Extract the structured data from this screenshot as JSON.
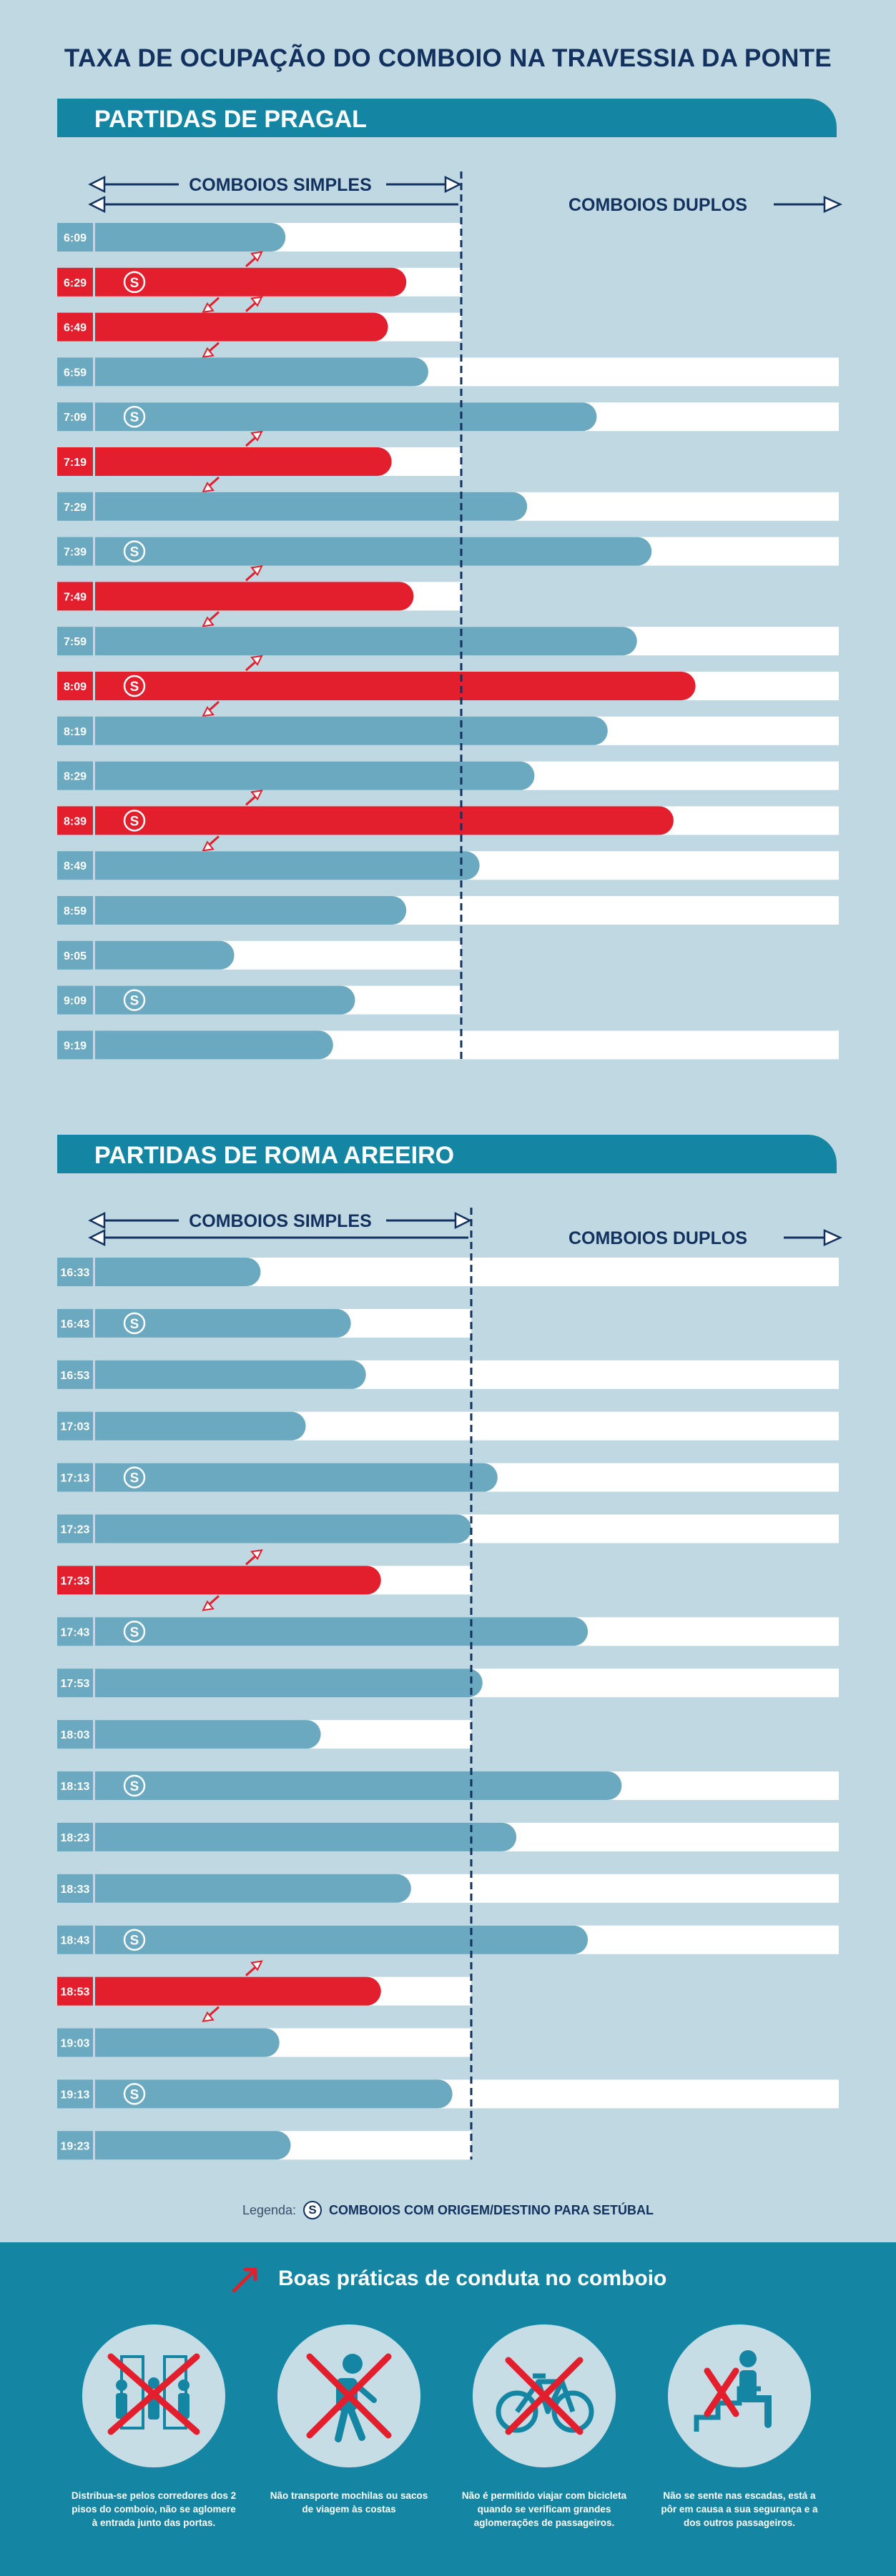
{
  "title": "TAXA DE OCUPAÇÃO DO COMBOIO NA TRAVESSIA DA PONTE",
  "labels": {
    "simple": "COMBOIOS SIMPLES",
    "double": "COMBOIOS DUPLOS"
  },
  "colors": {
    "background": "#bfd8e2",
    "banner": "#1486a3",
    "normal_bar": "#6aa9bf",
    "highlight_bar": "#e31e2d",
    "track": "#ffffff",
    "text_dark": "#12315e"
  },
  "chart_data": [
    {
      "type": "bar",
      "title": "PARTIDAS DE PRAGAL",
      "value_unit": "occupancy relative to single-train capacity",
      "capacity_single": 1.0,
      "capacity_double": 2.0,
      "categories": [
        "6:09",
        "6:29",
        "6:49",
        "6:59",
        "7:09",
        "7:19",
        "7:29",
        "7:39",
        "7:49",
        "7:59",
        "8:09",
        "8:19",
        "8:29",
        "8:39",
        "8:49",
        "8:59",
        "9:05",
        "9:09",
        "9:19"
      ],
      "values": [
        0.52,
        0.85,
        0.8,
        0.91,
        1.37,
        0.81,
        1.18,
        1.52,
        0.87,
        1.48,
        1.64,
        1.4,
        1.2,
        1.58,
        1.05,
        0.85,
        0.38,
        0.71,
        0.65
      ],
      "setubal": [
        false,
        true,
        false,
        false,
        true,
        false,
        false,
        true,
        false,
        false,
        true,
        false,
        false,
        true,
        false,
        false,
        false,
        true,
        false
      ],
      "highlight": [
        false,
        true,
        true,
        false,
        false,
        true,
        false,
        false,
        true,
        false,
        true,
        false,
        false,
        true,
        false,
        false,
        false,
        false,
        false
      ],
      "double_train": [
        false,
        false,
        false,
        true,
        true,
        false,
        true,
        true,
        false,
        true,
        true,
        true,
        true,
        true,
        true,
        true,
        false,
        false,
        true
      ]
    },
    {
      "type": "bar",
      "title": "PARTIDAS DE ROMA AREEIRO",
      "value_unit": "occupancy relative to single-train capacity",
      "capacity_single": 1.0,
      "capacity_double": 2.0,
      "categories": [
        "16:33",
        "16:43",
        "16:53",
        "17:03",
        "17:13",
        "17:23",
        "17:33",
        "17:43",
        "17:53",
        "18:03",
        "18:13",
        "18:23",
        "18:33",
        "18:43",
        "18:53",
        "19:03",
        "19:13",
        "19:23"
      ],
      "values": [
        0.44,
        0.68,
        0.72,
        0.56,
        1.07,
        1.0,
        0.76,
        1.31,
        1.03,
        0.6,
        1.4,
        1.12,
        0.84,
        1.31,
        0.76,
        0.49,
        0.95,
        0.52
      ],
      "setubal": [
        false,
        true,
        false,
        false,
        true,
        false,
        false,
        true,
        false,
        false,
        true,
        false,
        false,
        true,
        false,
        false,
        true,
        false
      ],
      "highlight": [
        false,
        false,
        false,
        false,
        false,
        false,
        true,
        false,
        false,
        false,
        false,
        false,
        false,
        false,
        true,
        false,
        false,
        false
      ],
      "double_train": [
        true,
        false,
        true,
        true,
        true,
        true,
        false,
        true,
        true,
        false,
        true,
        true,
        true,
        true,
        false,
        false,
        true,
        false
      ]
    }
  ],
  "legend": {
    "prefix": "Legenda:",
    "icon": "S",
    "text": "COMBOIOS COM ORIGEM/DESTINO PARA SETÚBAL"
  },
  "footer": {
    "title": "Boas práticas de conduta no comboio",
    "tips": [
      {
        "icon": "passengers-doors-icon",
        "text": "Distribua-se pelos corredores dos 2 pisos do comboio, não se aglomere à entrada junto das portas."
      },
      {
        "icon": "backpack-icon",
        "text": "Não transporte mochilas ou sacos de viagem às costas"
      },
      {
        "icon": "bicycle-icon",
        "text": "Não é permitido viajar com bicicleta quando se verificam grandes aglomerações de passageiros."
      },
      {
        "icon": "stairs-sitting-icon",
        "text": "Não se sente nas escadas, está a pôr em causa a sua segurança e a dos outros passageiros."
      }
    ]
  }
}
